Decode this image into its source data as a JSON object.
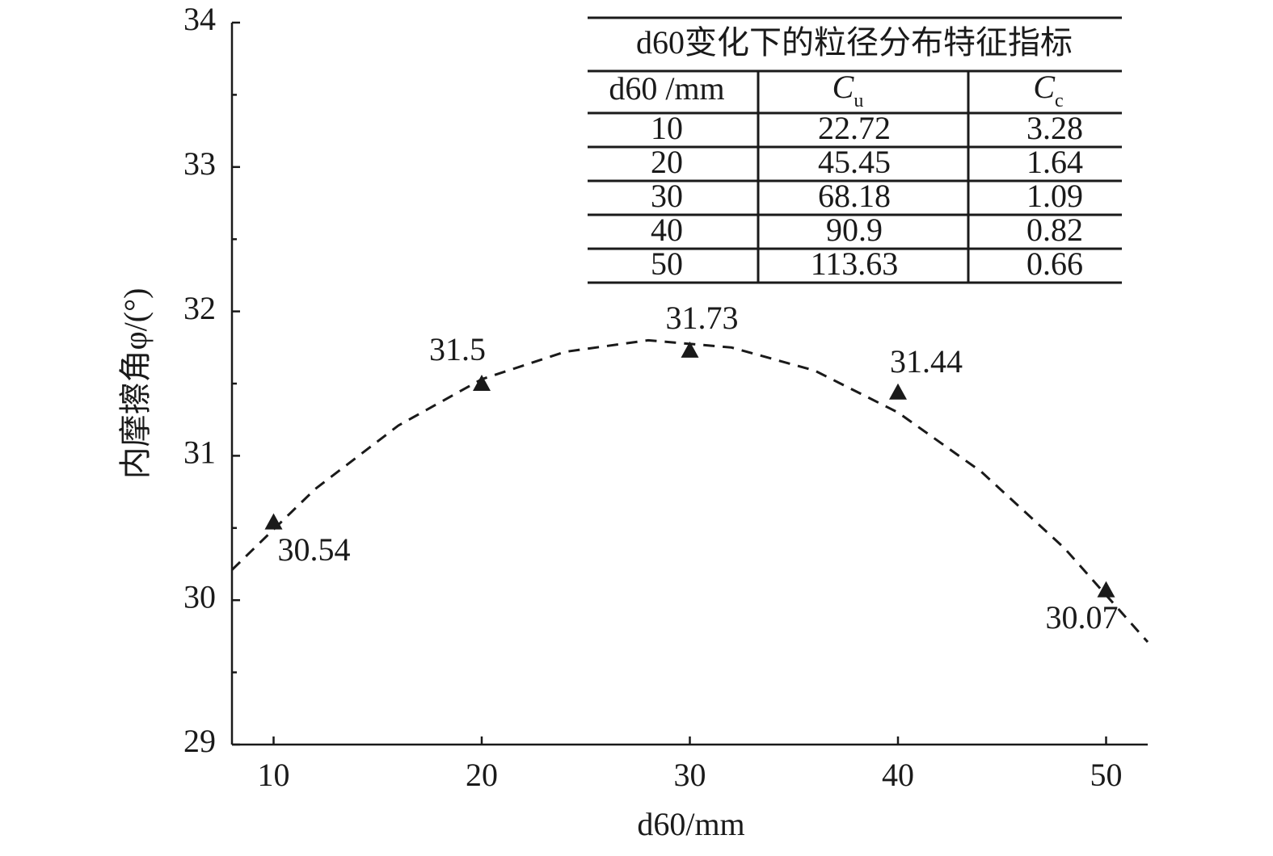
{
  "chart_data": {
    "type": "scatter",
    "x_label": "d60/mm",
    "y_label": "内摩擦角φ/(°)",
    "x": [
      10,
      20,
      30,
      40,
      50
    ],
    "series": [
      {
        "values": [
          30.54,
          31.5,
          31.73,
          31.44,
          30.07
        ],
        "color": "#1a1a1a"
      }
    ],
    "fit_line": {
      "x": [
        8,
        12,
        16,
        20,
        24,
        28,
        32,
        36,
        40,
        44,
        48,
        52
      ],
      "values": [
        30.21,
        30.77,
        31.21,
        31.53,
        31.72,
        31.8,
        31.75,
        31.59,
        31.3,
        30.89,
        30.36,
        29.71
      ],
      "color": "#1a1a1a"
    },
    "xlim": [
      8,
      52
    ],
    "xticks": [
      10,
      20,
      30,
      40,
      50
    ],
    "ylim": [
      29,
      34
    ],
    "yticks": [
      29,
      30,
      31,
      32,
      33,
      34
    ],
    "yminorticks": [
      29.5,
      30.5,
      31.5,
      32.5,
      33.5
    ],
    "grid": false,
    "table": {
      "title": "d60变化下的粒径分布特征指标",
      "header": [
        "d60 /mm",
        {
          "main": "C",
          "sub": "u"
        },
        {
          "main": "C",
          "sub": "c"
        }
      ],
      "rows": [
        [
          10,
          22.72,
          3.28
        ],
        [
          20,
          45.45,
          1.64
        ],
        [
          30,
          68.18,
          1.09
        ],
        [
          40,
          90.9,
          0.82
        ],
        [
          50,
          113.63,
          0.66
        ]
      ]
    }
  }
}
